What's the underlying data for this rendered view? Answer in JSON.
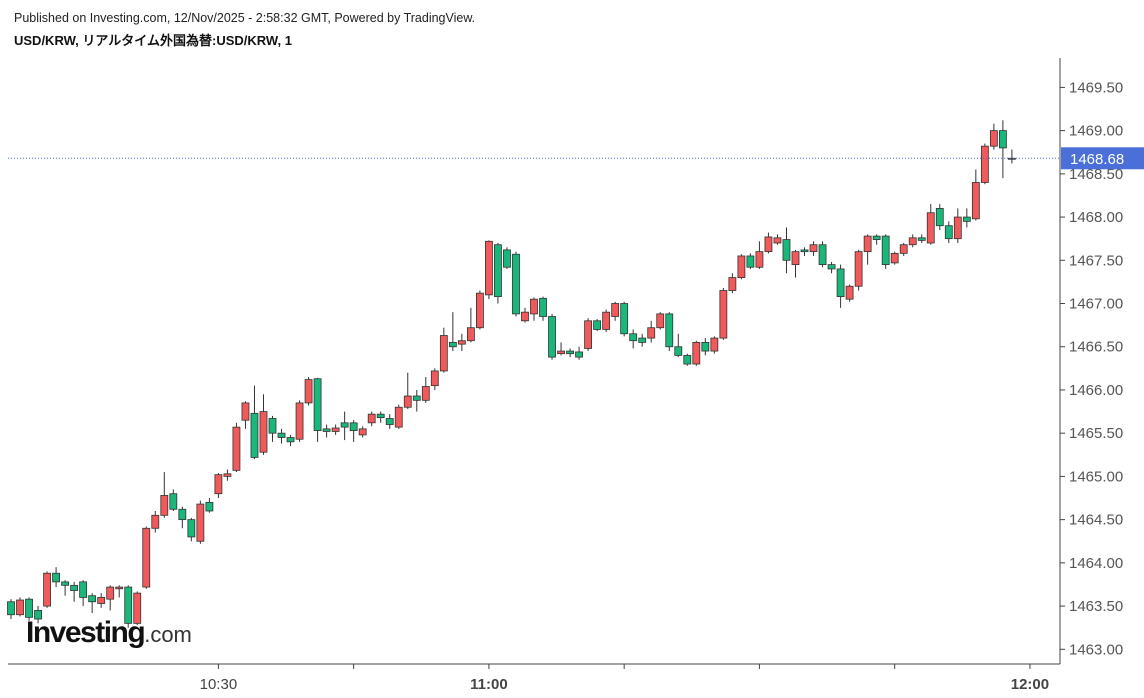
{
  "header": {
    "published": "Published on Investing.com, 12/Nov/2025 - 2:58:32 GMT, Powered by TradingView.",
    "symbol": "USD/KRW, リアルタイム外国為替:USD/KRW, 1"
  },
  "logo": {
    "brand": "Investing",
    "suffix": ".com"
  },
  "chart_data": {
    "type": "candlestick",
    "x": [
      "10:07",
      "10:08",
      "10:09",
      "10:10",
      "10:11",
      "10:12",
      "10:13",
      "10:14",
      "10:15",
      "10:16",
      "10:17",
      "10:18",
      "10:19",
      "10:20",
      "10:21",
      "10:22",
      "10:23",
      "10:24",
      "10:25",
      "10:26",
      "10:27",
      "10:28",
      "10:29",
      "10:30",
      "10:31",
      "10:32",
      "10:33",
      "10:34",
      "10:35",
      "10:36",
      "10:37",
      "10:38",
      "10:39",
      "10:40",
      "10:41",
      "10:42",
      "10:43",
      "10:44",
      "10:45",
      "10:46",
      "10:47",
      "10:48",
      "10:49",
      "10:50",
      "10:51",
      "10:52",
      "10:53",
      "10:54",
      "10:55",
      "10:56",
      "10:57",
      "10:58",
      "10:59",
      "11:00",
      "11:01",
      "11:02",
      "11:03",
      "11:04",
      "11:05",
      "11:06",
      "11:07",
      "11:08",
      "11:09",
      "11:10",
      "11:11",
      "11:12",
      "11:13",
      "11:14",
      "11:15",
      "11:16",
      "11:17",
      "11:18",
      "11:19",
      "11:20",
      "11:21",
      "11:22",
      "11:23",
      "11:24",
      "11:25",
      "11:26",
      "11:27",
      "11:28",
      "11:29",
      "11:30",
      "11:31",
      "11:32",
      "11:33",
      "11:34",
      "11:35",
      "11:36",
      "11:37",
      "11:38",
      "11:39",
      "11:40",
      "11:41",
      "11:42",
      "11:43",
      "11:44",
      "11:45",
      "11:46",
      "11:47",
      "11:48",
      "11:49",
      "11:50",
      "11:51",
      "11:52",
      "11:53",
      "11:54",
      "11:55",
      "11:56",
      "11:57",
      "11:58"
    ],
    "open": [
      1463.55,
      1463.4,
      1463.58,
      1463.45,
      1463.5,
      1463.88,
      1463.78,
      1463.74,
      1463.78,
      1463.62,
      1463.53,
      1463.58,
      1463.7,
      1463.72,
      1463.3,
      1463.72,
      1464.4,
      1464.55,
      1464.8,
      1464.62,
      1464.5,
      1464.25,
      1464.7,
      1464.8,
      1465.0,
      1465.07,
      1465.65,
      1465.73,
      1465.28,
      1465.67,
      1465.5,
      1465.45,
      1465.43,
      1465.85,
      1466.13,
      1465.55,
      1465.52,
      1465.62,
      1465.62,
      1465.48,
      1465.62,
      1465.72,
      1465.67,
      1465.57,
      1465.8,
      1465.93,
      1465.88,
      1466.05,
      1466.22,
      1466.55,
      1466.53,
      1466.57,
      1466.72,
      1467.1,
      1467.68,
      1467.62,
      1467.57,
      1466.8,
      1466.88,
      1467.06,
      1466.85,
      1466.42,
      1466.45,
      1466.44,
      1466.48,
      1466.8,
      1466.7,
      1466.85,
      1467.0,
      1466.65,
      1466.6,
      1466.6,
      1466.72,
      1466.88,
      1466.5,
      1466.4,
      1466.3,
      1466.55,
      1466.45,
      1466.6,
      1467.15,
      1467.3,
      1467.55,
      1467.42,
      1467.6,
      1467.7,
      1467.74,
      1467.45,
      1467.62,
      1467.6,
      1467.68,
      1467.45,
      1467.4,
      1467.05,
      1467.2,
      1467.6,
      1467.78,
      1467.78,
      1467.47,
      1467.58,
      1467.68,
      1467.76,
      1467.7,
      1468.1,
      1467.9,
      1467.75,
      1468.0,
      1467.98,
      1468.4,
      1468.82,
      1469.0,
      1468.68
    ],
    "high": [
      1463.58,
      1463.6,
      1463.6,
      1463.5,
      1463.9,
      1463.95,
      1463.8,
      1463.78,
      1463.8,
      1463.65,
      1463.65,
      1463.74,
      1463.74,
      1463.74,
      1463.67,
      1464.42,
      1464.6,
      1465.05,
      1464.85,
      1464.65,
      1464.52,
      1464.72,
      1464.75,
      1465.04,
      1465.08,
      1465.62,
      1465.87,
      1466.05,
      1465.95,
      1465.7,
      1465.55,
      1465.48,
      1465.88,
      1466.15,
      1466.14,
      1465.6,
      1465.6,
      1465.75,
      1465.65,
      1465.58,
      1465.75,
      1465.75,
      1465.72,
      1465.83,
      1466.2,
      1466.0,
      1466.15,
      1466.25,
      1466.72,
      1466.9,
      1466.65,
      1466.95,
      1467.15,
      1467.73,
      1467.7,
      1467.65,
      1467.6,
      1466.95,
      1467.07,
      1467.08,
      1466.88,
      1466.55,
      1466.48,
      1466.5,
      1466.83,
      1466.82,
      1466.93,
      1467.02,
      1467.02,
      1466.7,
      1466.65,
      1466.8,
      1466.9,
      1466.9,
      1466.65,
      1466.42,
      1466.57,
      1466.6,
      1466.62,
      1467.18,
      1467.35,
      1467.57,
      1467.58,
      1467.72,
      1467.82,
      1467.8,
      1467.88,
      1467.62,
      1467.65,
      1467.72,
      1467.72,
      1467.48,
      1467.45,
      1467.22,
      1467.62,
      1467.8,
      1467.8,
      1467.8,
      1467.6,
      1467.7,
      1467.8,
      1467.8,
      1468.15,
      1468.15,
      1467.95,
      1468.1,
      1468.1,
      1468.55,
      1468.85,
      1469.08,
      1469.12,
      1468.78
    ],
    "low": [
      1463.35,
      1463.38,
      1463.33,
      1463.3,
      1463.48,
      1463.72,
      1463.62,
      1463.55,
      1463.5,
      1463.42,
      1463.48,
      1463.45,
      1463.6,
      1463.25,
      1463.28,
      1463.7,
      1464.35,
      1464.52,
      1464.6,
      1464.4,
      1464.25,
      1464.22,
      1464.58,
      1464.75,
      1464.95,
      1465.05,
      1465.55,
      1465.2,
      1465.25,
      1465.4,
      1465.38,
      1465.35,
      1465.4,
      1465.82,
      1465.4,
      1465.45,
      1465.48,
      1465.42,
      1465.4,
      1465.45,
      1465.58,
      1465.62,
      1465.55,
      1465.55,
      1465.78,
      1465.75,
      1465.85,
      1466.0,
      1466.2,
      1466.45,
      1466.45,
      1466.55,
      1466.7,
      1467.05,
      1467.0,
      1467.4,
      1466.85,
      1466.78,
      1466.8,
      1466.8,
      1466.35,
      1466.4,
      1466.38,
      1466.35,
      1466.45,
      1466.68,
      1466.67,
      1466.8,
      1466.62,
      1466.48,
      1466.5,
      1466.55,
      1466.7,
      1466.45,
      1466.38,
      1466.28,
      1466.28,
      1466.4,
      1466.42,
      1466.58,
      1467.12,
      1467.28,
      1467.4,
      1467.4,
      1467.58,
      1467.68,
      1467.35,
      1467.3,
      1467.55,
      1467.55,
      1467.42,
      1467.35,
      1466.95,
      1467.02,
      1467.15,
      1467.45,
      1467.68,
      1467.4,
      1467.45,
      1467.55,
      1467.65,
      1467.7,
      1467.68,
      1467.85,
      1467.7,
      1467.7,
      1467.88,
      1467.96,
      1468.38,
      1468.78,
      1468.45,
      1468.62
    ],
    "close": [
      1463.4,
      1463.57,
      1463.37,
      1463.35,
      1463.88,
      1463.78,
      1463.74,
      1463.68,
      1463.6,
      1463.55,
      1463.6,
      1463.72,
      1463.72,
      1463.3,
      1463.65,
      1464.4,
      1464.55,
      1464.78,
      1464.62,
      1464.5,
      1464.3,
      1464.68,
      1464.6,
      1465.02,
      1465.03,
      1465.57,
      1465.85,
      1465.22,
      1465.75,
      1465.5,
      1465.45,
      1465.4,
      1465.85,
      1466.12,
      1465.53,
      1465.52,
      1465.56,
      1465.57,
      1465.53,
      1465.55,
      1465.72,
      1465.68,
      1465.6,
      1465.8,
      1465.93,
      1465.88,
      1466.04,
      1466.22,
      1466.63,
      1466.5,
      1466.57,
      1466.72,
      1467.12,
      1467.72,
      1467.08,
      1467.42,
      1466.88,
      1466.9,
      1467.05,
      1466.85,
      1466.38,
      1466.45,
      1466.42,
      1466.38,
      1466.8,
      1466.7,
      1466.9,
      1467.0,
      1466.65,
      1466.57,
      1466.55,
      1466.72,
      1466.88,
      1466.5,
      1466.4,
      1466.3,
      1466.55,
      1466.45,
      1466.6,
      1467.15,
      1467.3,
      1467.55,
      1467.42,
      1467.6,
      1467.77,
      1467.76,
      1467.5,
      1467.6,
      1467.6,
      1467.68,
      1467.45,
      1467.4,
      1467.08,
      1467.2,
      1467.6,
      1467.78,
      1467.74,
      1467.45,
      1467.58,
      1467.68,
      1467.76,
      1467.73,
      1468.05,
      1467.9,
      1467.75,
      1468.0,
      1467.95,
      1468.4,
      1468.82,
      1469.0,
      1468.8,
      1468.68
    ],
    "up_color": "#f05a5a",
    "down_color": "#19b87a",
    "flat_color": "#6b8f80",
    "price_line_color": "#4a6fd8",
    "xlim": [
      "10:06:40",
      "12:03:20"
    ],
    "xticks": [
      "10:30",
      "11:00",
      "12:00"
    ],
    "xminorticks": [
      "10:45",
      "11:15",
      "11:30",
      "11:45"
    ],
    "ylim": [
      1462.83,
      1469.84
    ],
    "yticks": [
      {
        "value": 1463,
        "label": "1463.00"
      },
      {
        "value": 1463.5,
        "label": "1463.50"
      },
      {
        "value": 1464,
        "label": "1464.00"
      },
      {
        "value": 1464.5,
        "label": "1464.50"
      },
      {
        "value": 1465,
        "label": "1465.00"
      },
      {
        "value": 1465.5,
        "label": "1465.50"
      },
      {
        "value": 1466,
        "label": "1466.00"
      },
      {
        "value": 1466.5,
        "label": "1466.50"
      },
      {
        "value": 1467,
        "label": "1467.00"
      },
      {
        "value": 1467.5,
        "label": "1467.50"
      },
      {
        "value": 1468,
        "label": "1468.00"
      },
      {
        "value": 1468.5,
        "label": "1468.50"
      },
      {
        "value": 1469,
        "label": "1469.00"
      },
      {
        "value": 1469.5,
        "label": "1469.50"
      }
    ]
  }
}
